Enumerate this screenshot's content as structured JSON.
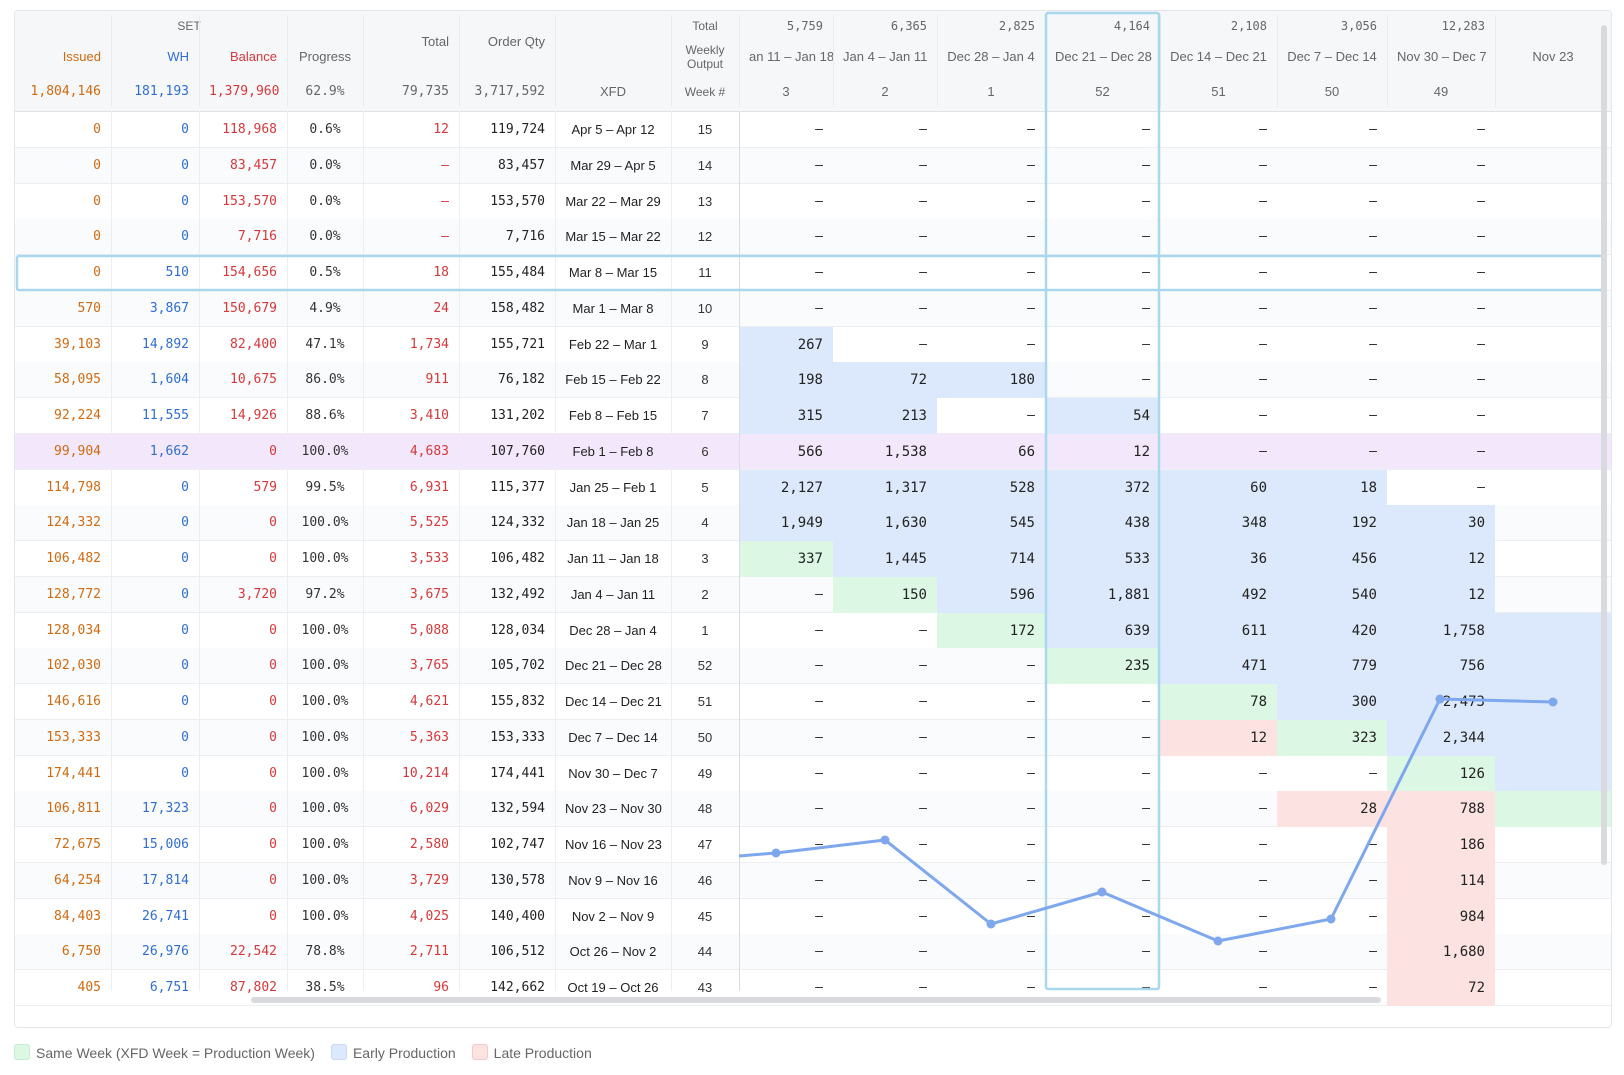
{
  "header": {
    "set_label": "SET",
    "issued_label": "Issued",
    "wh_label": "WH",
    "balance_label": "Balance",
    "progress_label": "Progress",
    "total_label": "Total",
    "orderqty_label": "Order Qty",
    "total_row_label": "Total",
    "weekly_output_label": "Weekly Output",
    "xfd_label": "XFD",
    "weeknum_label": "Week #",
    "sum_issued": "1,804,146",
    "sum_wh": "181,193",
    "sum_balance": "1,379,960",
    "sum_progress": "62.9%",
    "sum_total": "79,735",
    "sum_orderqty": "3,717,592"
  },
  "week_columns": [
    {
      "total": "5,759",
      "range": "an 11 – Jan 18",
      "week": "3"
    },
    {
      "total": "6,365",
      "range": "Jan 4 – Jan 11",
      "week": "2"
    },
    {
      "total": "2,825",
      "range": "Dec 28 – Jan 4",
      "week": "1"
    },
    {
      "total": "4,164",
      "range": "Dec 21 – Dec 28",
      "week": "52"
    },
    {
      "total": "2,108",
      "range": "Dec 14 – Dec 21",
      "week": "51"
    },
    {
      "total": "3,056",
      "range": "Dec 7 – Dec 14",
      "week": "50"
    },
    {
      "total": "12,283",
      "range": "Nov 30 – Dec 7",
      "week": "49"
    },
    {
      "total": "",
      "range": "Nov 23",
      "week": ""
    }
  ],
  "rows": [
    {
      "issued": "0",
      "wh": "0",
      "balance": "118,968",
      "progress": "0.6%",
      "total": "12",
      "orderqty": "119,724",
      "xfd": "Apr 5 – Apr 12",
      "week": "15",
      "cells": [
        "–",
        "–",
        "–",
        "–",
        "–",
        "–",
        "–",
        ""
      ]
    },
    {
      "issued": "0",
      "wh": "0",
      "balance": "83,457",
      "progress": "0.0%",
      "total": "–",
      "orderqty": "83,457",
      "xfd": "Mar 29 – Apr 5",
      "week": "14",
      "cells": [
        "–",
        "–",
        "–",
        "–",
        "–",
        "–",
        "–",
        ""
      ]
    },
    {
      "issued": "0",
      "wh": "0",
      "balance": "153,570",
      "progress": "0.0%",
      "total": "–",
      "orderqty": "153,570",
      "xfd": "Mar 22 – Mar 29",
      "week": "13",
      "cells": [
        "–",
        "–",
        "–",
        "–",
        "–",
        "–",
        "–",
        ""
      ]
    },
    {
      "issued": "0",
      "wh": "0",
      "balance": "7,716",
      "progress": "0.0%",
      "total": "–",
      "orderqty": "7,716",
      "xfd": "Mar 15 – Mar 22",
      "week": "12",
      "cells": [
        "–",
        "–",
        "–",
        "–",
        "–",
        "–",
        "–",
        ""
      ]
    },
    {
      "issued": "0",
      "wh": "510",
      "balance": "154,656",
      "progress": "0.5%",
      "total": "18",
      "orderqty": "155,484",
      "xfd": "Mar 8 – Mar 15",
      "week": "11",
      "cells": [
        "–",
        "–",
        "–",
        "–",
        "–",
        "–",
        "–",
        ""
      ]
    },
    {
      "issued": "570",
      "wh": "3,867",
      "balance": "150,679",
      "progress": "4.9%",
      "total": "24",
      "orderqty": "158,482",
      "xfd": "Mar 1 – Mar 8",
      "week": "10",
      "cells": [
        "–",
        "–",
        "–",
        "–",
        "–",
        "–",
        "–",
        ""
      ]
    },
    {
      "issued": "39,103",
      "wh": "14,892",
      "balance": "82,400",
      "progress": "47.1%",
      "total": "1,734",
      "orderqty": "155,721",
      "xfd": "Feb 22 – Mar 1",
      "week": "9",
      "cells": [
        "267",
        "–",
        "–",
        "–",
        "–",
        "–",
        "–",
        ""
      ]
    },
    {
      "issued": "58,095",
      "wh": "1,604",
      "balance": "10,675",
      "progress": "86.0%",
      "total": "911",
      "orderqty": "76,182",
      "xfd": "Feb 15 – Feb 22",
      "week": "8",
      "cells": [
        "198",
        "72",
        "180",
        "–",
        "–",
        "–",
        "–",
        ""
      ]
    },
    {
      "issued": "92,224",
      "wh": "11,555",
      "balance": "14,926",
      "progress": "88.6%",
      "total": "3,410",
      "orderqty": "131,202",
      "xfd": "Feb 8 – Feb 15",
      "week": "7",
      "cells": [
        "315",
        "213",
        "–",
        "54",
        "–",
        "–",
        "–",
        ""
      ]
    },
    {
      "issued": "99,904",
      "wh": "1,662",
      "balance": "0",
      "progress": "100.0%",
      "total": "4,683",
      "orderqty": "107,760",
      "xfd": "Feb 1 – Feb 8",
      "week": "6",
      "cells": [
        "566",
        "1,538",
        "66",
        "12",
        "–",
        "–",
        "–",
        ""
      ]
    },
    {
      "issued": "114,798",
      "wh": "0",
      "balance": "579",
      "progress": "99.5%",
      "total": "6,931",
      "orderqty": "115,377",
      "xfd": "Jan 25 – Feb 1",
      "week": "5",
      "cells": [
        "2,127",
        "1,317",
        "528",
        "372",
        "60",
        "18",
        "–",
        ""
      ]
    },
    {
      "issued": "124,332",
      "wh": "0",
      "balance": "0",
      "progress": "100.0%",
      "total": "5,525",
      "orderqty": "124,332",
      "xfd": "Jan 18 – Jan 25",
      "week": "4",
      "cells": [
        "1,949",
        "1,630",
        "545",
        "438",
        "348",
        "192",
        "30",
        ""
      ]
    },
    {
      "issued": "106,482",
      "wh": "0",
      "balance": "0",
      "progress": "100.0%",
      "total": "3,533",
      "orderqty": "106,482",
      "xfd": "Jan 11 – Jan 18",
      "week": "3",
      "cells": [
        "337",
        "1,445",
        "714",
        "533",
        "36",
        "456",
        "12",
        ""
      ]
    },
    {
      "issued": "128,772",
      "wh": "0",
      "balance": "3,720",
      "progress": "97.2%",
      "total": "3,675",
      "orderqty": "132,492",
      "xfd": "Jan 4 – Jan 11",
      "week": "2",
      "cells": [
        "–",
        "150",
        "596",
        "1,881",
        "492",
        "540",
        "12",
        ""
      ]
    },
    {
      "issued": "128,034",
      "wh": "0",
      "balance": "0",
      "progress": "100.0%",
      "total": "5,088",
      "orderqty": "128,034",
      "xfd": "Dec 28 – Jan 4",
      "week": "1",
      "cells": [
        "–",
        "–",
        "172",
        "639",
        "611",
        "420",
        "1,758",
        ""
      ]
    },
    {
      "issued": "102,030",
      "wh": "0",
      "balance": "0",
      "progress": "100.0%",
      "total": "3,765",
      "orderqty": "105,702",
      "xfd": "Dec 21 – Dec 28",
      "week": "52",
      "cells": [
        "–",
        "–",
        "–",
        "235",
        "471",
        "779",
        "756",
        ""
      ]
    },
    {
      "issued": "146,616",
      "wh": "0",
      "balance": "0",
      "progress": "100.0%",
      "total": "4,621",
      "orderqty": "155,832",
      "xfd": "Dec 14 – Dec 21",
      "week": "51",
      "cells": [
        "–",
        "–",
        "–",
        "–",
        "78",
        "300",
        "2,473",
        ""
      ]
    },
    {
      "issued": "153,333",
      "wh": "0",
      "balance": "0",
      "progress": "100.0%",
      "total": "5,363",
      "orderqty": "153,333",
      "xfd": "Dec 7 – Dec 14",
      "week": "50",
      "cells": [
        "–",
        "–",
        "–",
        "–",
        "12",
        "323",
        "2,344",
        ""
      ]
    },
    {
      "issued": "174,441",
      "wh": "0",
      "balance": "0",
      "progress": "100.0%",
      "total": "10,214",
      "orderqty": "174,441",
      "xfd": "Nov 30 – Dec 7",
      "week": "49",
      "cells": [
        "–",
        "–",
        "–",
        "–",
        "–",
        "–",
        "126",
        ""
      ]
    },
    {
      "issued": "106,811",
      "wh": "17,323",
      "balance": "0",
      "progress": "100.0%",
      "total": "6,029",
      "orderqty": "132,594",
      "xfd": "Nov 23 – Nov 30",
      "week": "48",
      "cells": [
        "–",
        "–",
        "–",
        "–",
        "–",
        "28",
        "788",
        ""
      ]
    },
    {
      "issued": "72,675",
      "wh": "15,006",
      "balance": "0",
      "progress": "100.0%",
      "total": "2,580",
      "orderqty": "102,747",
      "xfd": "Nov 16 – Nov 23",
      "week": "47",
      "cells": [
        "–",
        "–",
        "–",
        "–",
        "–",
        "–",
        "186",
        ""
      ]
    },
    {
      "issued": "64,254",
      "wh": "17,814",
      "balance": "0",
      "progress": "100.0%",
      "total": "3,729",
      "orderqty": "130,578",
      "xfd": "Nov 9 – Nov 16",
      "week": "46",
      "cells": [
        "–",
        "–",
        "–",
        "–",
        "–",
        "–",
        "114",
        ""
      ]
    },
    {
      "issued": "84,403",
      "wh": "26,741",
      "balance": "0",
      "progress": "100.0%",
      "total": "4,025",
      "orderqty": "140,400",
      "xfd": "Nov 2 – Nov 9",
      "week": "45",
      "cells": [
        "–",
        "–",
        "–",
        "–",
        "–",
        "–",
        "984",
        ""
      ]
    },
    {
      "issued": "6,750",
      "wh": "26,976",
      "balance": "22,542",
      "progress": "78.8%",
      "total": "2,711",
      "orderqty": "106,512",
      "xfd": "Oct 26 – Nov 2",
      "week": "44",
      "cells": [
        "–",
        "–",
        "–",
        "–",
        "–",
        "–",
        "1,680",
        ""
      ]
    },
    {
      "issued": "405",
      "wh": "6,751",
      "balance": "87,802",
      "progress": "38.5%",
      "total": "96",
      "orderqty": "142,662",
      "xfd": "Oct 19 – Oct 26",
      "week": "43",
      "cells": [
        "–",
        "–",
        "–",
        "–",
        "–",
        "–",
        "72",
        ""
      ]
    }
  ],
  "cell_colors": {
    "green": "#dcf7e3",
    "blue": "#dce8fb",
    "red": "#fde2e2",
    "pink_row": "#f3e8fb",
    "selection": "#a9d8ee",
    "line": "#7ea7ee"
  },
  "legend": {
    "same_week": "Same Week (XFD Week = Production Week)",
    "early": "Early Production",
    "late": "Late Production"
  }
}
